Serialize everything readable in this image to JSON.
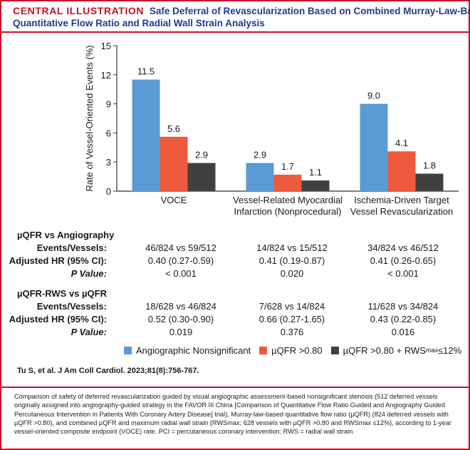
{
  "header": {
    "tag": "CENTRAL ILLUSTRATION",
    "title_line1": "Safe Deferral of Revascularization Based on Combined Murray-Law-Based",
    "title_line2": "Quantitative Flow Ratio and Radial Wall Strain Analysis"
  },
  "chart_data": {
    "type": "bar",
    "ylabel": "Rate of Vessel-Oriented Events (%)",
    "ylim": [
      0,
      15
    ],
    "yticks": [
      0,
      3,
      6,
      9,
      12,
      15
    ],
    "categories": [
      [
        "VOCE"
      ],
      [
        "Vessel-Related Myocardial",
        "Infarction (Nonprocedural)"
      ],
      [
        "Ischemia-Driven Target",
        "Vessel Revascularization"
      ]
    ],
    "series": [
      {
        "name": "Angiographic Nonsignificant",
        "color": "#5b9bd5",
        "values": [
          11.5,
          2.9,
          9.0
        ],
        "labels": [
          "11.5",
          "2.9",
          "9.0"
        ]
      },
      {
        "name": "µQFR >0.80",
        "color": "#ee5a3c",
        "values": [
          5.6,
          1.7,
          4.1
        ],
        "labels": [
          "5.6",
          "1.7",
          "4.1"
        ]
      },
      {
        "name": "µQFR >0.80 + RWS",
        "name_sub": "max",
        "name_suffix": " ≤12%",
        "color": "#404040",
        "values": [
          2.9,
          1.1,
          1.8
        ],
        "labels": [
          "2.9",
          "1.1",
          "1.8"
        ]
      }
    ]
  },
  "table": {
    "section1": {
      "heading": "µQFR vs Angiography",
      "rows": [
        {
          "label": "Events/Vessels:",
          "values": [
            "46/824 vs 59/512",
            "14/824 vs 15/512",
            "34/824 vs 46/512"
          ]
        },
        {
          "label": "Adjusted HR (95% CI):",
          "values": [
            "0.40 (0.27-0.59)",
            "0.41 (0.19-0.87)",
            "0.41 (0.26-0.65)"
          ]
        },
        {
          "label": "P Value:",
          "values": [
            "< 0.001",
            "0.020",
            "< 0.001"
          ]
        }
      ]
    },
    "section2": {
      "heading": "µQFR-RWS vs µQFR",
      "rows": [
        {
          "label": "Events/Vessels:",
          "values": [
            "18/628 vs 46/824",
            "7/628 vs 14/824",
            "11/628 vs 34/824"
          ]
        },
        {
          "label": "Adjusted HR (95% CI):",
          "values": [
            "0.52 (0.30-0.90)",
            "0.66 (0.27-1.65)",
            "0.43 (0.22-0.85)"
          ]
        },
        {
          "label": "P Value:",
          "values": [
            "0.019",
            "0.376",
            "0.016"
          ]
        }
      ]
    }
  },
  "citation": "Tu S, et al. J Am Coll Cardiol. 2023;81(8):756-767.",
  "caption": "Comparison of safety of deferred revascularization guided by visual angiographic assessment-based nonsignificant stenosis (512 deferred vessels originally assigned into angiography-guided strategy in the FAVOR III China [Comparison of Quantitative Flow Ratio Guided and Angiography Guided Percutaneous Intervention in Patients With Coronary Artery Disease] trial), Murray-law-based quantitative flow ratio (µQFR) (824 deferred vessels with µQFR >0.80), and combined µQFR and maximum radial wall strain (RWSmax; 628 vessels with µQFR >0.80 and RWSmax ≤12%), according to 1-year vessel-oriented composite endpoint (VOCE) rate. PCI = percutaneous coronary intervention; RWS = radial wall strain."
}
